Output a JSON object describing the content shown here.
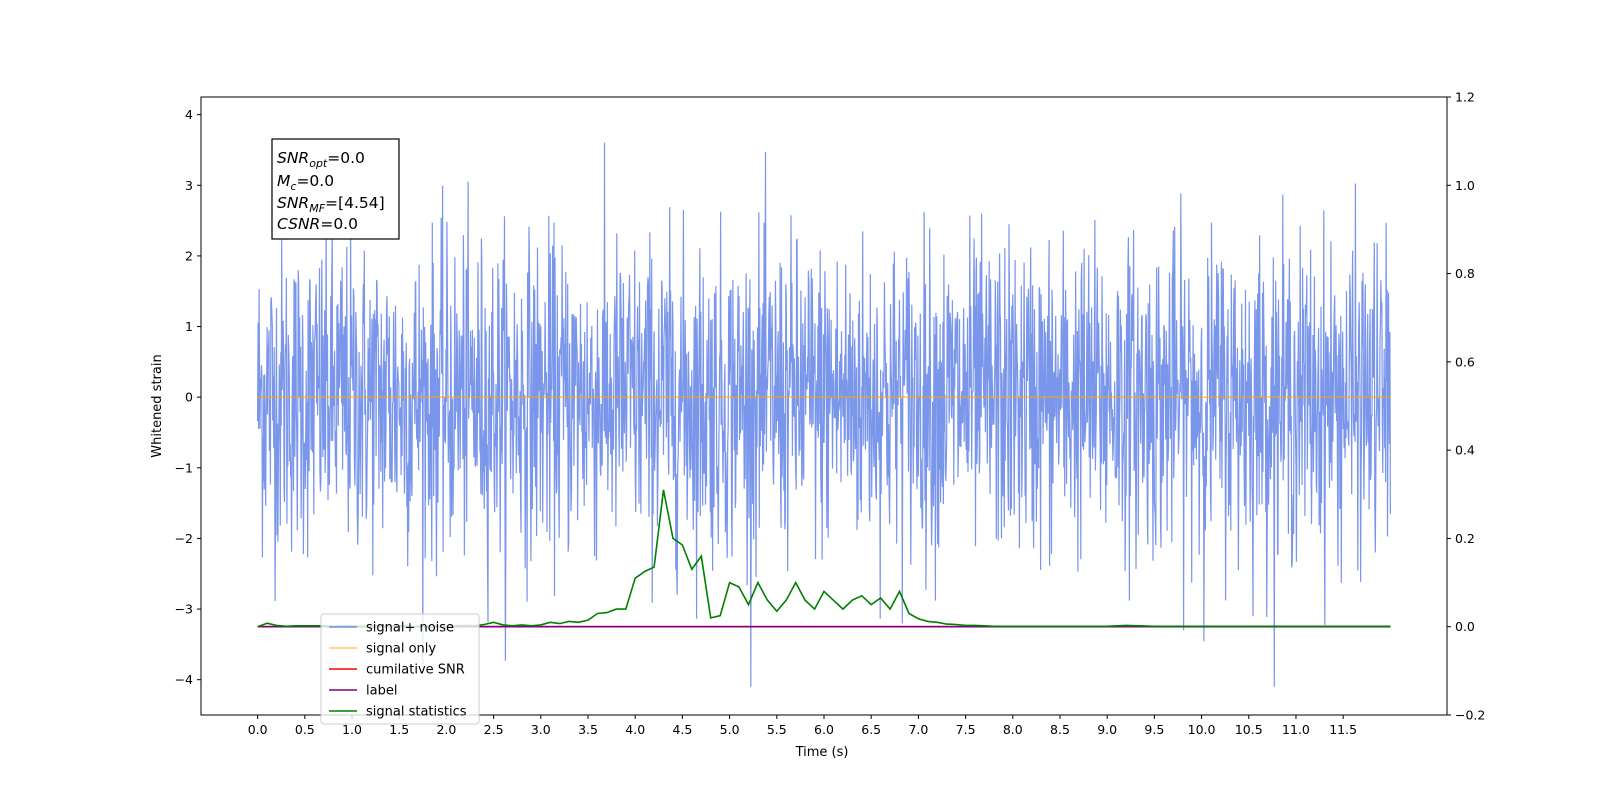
{
  "chart_data": {
    "type": "line",
    "xlabel": "Time (s)",
    "ylabel": "Whitened strain",
    "xlim": [
      -0.6,
      12.6
    ],
    "ylim": [
      -4.5,
      4.25
    ],
    "ylim_right": [
      -0.2,
      1.2
    ],
    "x_ticks": [
      "0.0",
      "0.5",
      "1.0",
      "1.5",
      "2.0",
      "2.5",
      "3.0",
      "3.5",
      "4.0",
      "4.5",
      "5.0",
      "5.5",
      "6.0",
      "6.5",
      "7.0",
      "7.5",
      "8.0",
      "8.5",
      "9.0",
      "9.5",
      "10.0",
      "10.5",
      "11.0",
      "11.5"
    ],
    "x_tick_values": [
      0,
      0.5,
      1,
      1.5,
      2,
      2.5,
      3,
      3.5,
      4,
      4.5,
      5,
      5.5,
      6,
      6.5,
      7,
      7.5,
      8,
      8.5,
      9,
      9.5,
      10,
      10.5,
      11,
      11.5
    ],
    "y_ticks": [
      "−4",
      "−3",
      "−2",
      "−1",
      "0",
      "1",
      "2",
      "3",
      "4"
    ],
    "y_tick_values": [
      -4,
      -3,
      -2,
      -1,
      0,
      1,
      2,
      3,
      4
    ],
    "y2_ticks": [
      "−0.2",
      "0.0",
      "0.2",
      "0.4",
      "0.6",
      "0.8",
      "1.0",
      "1.2"
    ],
    "y2_tick_values": [
      -0.2,
      0,
      0.2,
      0.4,
      0.6,
      0.8,
      1.0,
      1.2
    ],
    "grid": false,
    "legend_placement": "lower-left",
    "stats_box": {
      "snr_opt": {
        "sym": "SNR",
        "sub": "opt",
        "val": "=0.0"
      },
      "mc": {
        "sym": "M",
        "sub": "c",
        "val": "=0.0"
      },
      "snr_mf": {
        "sym": "SNR",
        "sub": "MF",
        "val": "=[4.54]"
      },
      "csnr": {
        "sym": "CSNR",
        "sub": "",
        "val": "=0.0"
      }
    },
    "series": [
      {
        "name": "signal+ noise",
        "color": "#4169e1",
        "axis": "left",
        "x_range": [
          0,
          12.0
        ],
        "note_points": 2400
      },
      {
        "name": "signal only",
        "color": "#ffa500",
        "axis": "left",
        "x": [
          0,
          12.0
        ],
        "values": [
          0,
          0
        ]
      },
      {
        "name": "cumilative SNR",
        "color": "#ff0000",
        "axis": "right",
        "x": [
          0,
          12.0
        ],
        "values": [
          0,
          0
        ]
      },
      {
        "name": "label",
        "color": "#800080",
        "axis": "right",
        "x": [
          0,
          12.0
        ],
        "values": [
          0,
          0
        ]
      },
      {
        "name": "signal statistics",
        "color": "#008000",
        "axis": "right",
        "x": [
          0,
          0.1,
          0.2,
          0.3,
          0.4,
          0.5,
          0.6,
          0.7,
          0.8,
          0.9,
          1.0,
          1.1,
          1.2,
          1.3,
          1.4,
          1.5,
          1.6,
          1.7,
          1.8,
          1.9,
          2.0,
          2.1,
          2.2,
          2.3,
          2.4,
          2.5,
          2.6,
          2.7,
          2.8,
          2.9,
          3.0,
          3.1,
          3.2,
          3.3,
          3.4,
          3.5,
          3.6,
          3.7,
          3.8,
          3.9,
          4.0,
          4.1,
          4.2,
          4.3,
          4.4,
          4.5,
          4.6,
          4.7,
          4.8,
          4.9,
          5.0,
          5.1,
          5.2,
          5.3,
          5.4,
          5.5,
          5.6,
          5.7,
          5.8,
          5.9,
          6.0,
          6.1,
          6.2,
          6.3,
          6.4,
          6.5,
          6.6,
          6.7,
          6.8,
          6.9,
          7.0,
          7.1,
          7.2,
          7.3,
          7.4,
          7.5,
          7.6,
          7.7,
          7.8,
          8.0,
          8.5,
          9.0,
          9.2,
          9.5,
          10.0,
          10.5,
          11.0,
          11.5,
          12.0
        ],
        "values": [
          0.0,
          0.008,
          0.003,
          0.001,
          0.002,
          0.002,
          0.002,
          0.002,
          0.001,
          0.002,
          0.002,
          0.001,
          0.001,
          0.002,
          0.001,
          0.002,
          0.001,
          0.001,
          0.001,
          0.001,
          0.001,
          0.002,
          0.003,
          0.002,
          0.005,
          0.01,
          0.004,
          0.002,
          0.004,
          0.002,
          0.004,
          0.01,
          0.007,
          0.012,
          0.01,
          0.015,
          0.03,
          0.032,
          0.04,
          0.04,
          0.11,
          0.125,
          0.135,
          0.31,
          0.2,
          0.185,
          0.13,
          0.16,
          0.02,
          0.025,
          0.1,
          0.09,
          0.05,
          0.1,
          0.06,
          0.035,
          0.06,
          0.1,
          0.06,
          0.04,
          0.08,
          0.06,
          0.04,
          0.06,
          0.07,
          0.05,
          0.065,
          0.04,
          0.08,
          0.03,
          0.018,
          0.012,
          0.01,
          0.006,
          0.005,
          0.003,
          0.003,
          0.002,
          0.001,
          0.001,
          0.001,
          0.001,
          0.003,
          0.001,
          0.001,
          0.001,
          0.001,
          0.001,
          0.001
        ]
      }
    ]
  }
}
